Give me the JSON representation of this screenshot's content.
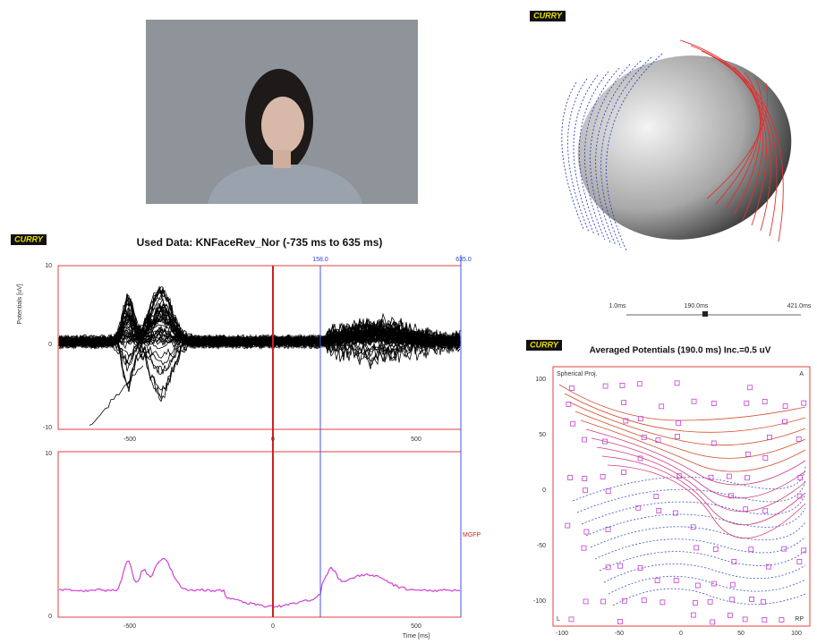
{
  "butterfly": {
    "logo": "CURRY",
    "title": "Used Data: KNFaceRev_Nor (-735 ms to 635 ms)",
    "cursor_labels": [
      "158.0",
      "635.0"
    ],
    "y_label": "Potentials [uV]",
    "top_yticks": [
      "10",
      "0",
      "-10"
    ],
    "top_xticks": [
      "-500",
      "0",
      "500"
    ],
    "bottom_yticks": [
      "10",
      "0"
    ],
    "bottom_xticks": [
      "-500",
      "0",
      "500"
    ],
    "x_label": "Time [ms]",
    "trace_label": "MGFP"
  },
  "head_3d": {
    "logo": "CURRY"
  },
  "time_slider": {
    "labels": [
      "1.0ms",
      "190.0ms",
      "421.0ms"
    ]
  },
  "topo_map": {
    "logo": "CURRY",
    "title": "Averaged Potentials (190.0 ms) Inc.=0.5 uV",
    "projection": "Spherical Proj.",
    "corner_labels": [
      "A",
      "L",
      "RP"
    ],
    "yticks": [
      "100",
      "50",
      "0",
      "-50",
      "-100"
    ],
    "xticks": [
      "-100",
      "-50",
      "0",
      "50",
      "100"
    ]
  }
}
